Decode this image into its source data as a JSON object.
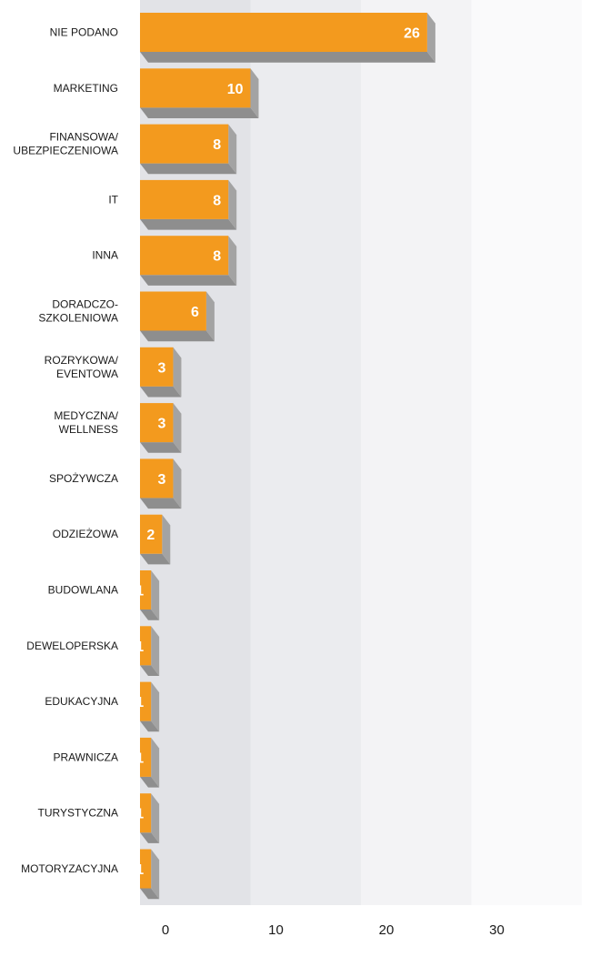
{
  "chart_data": {
    "type": "bar",
    "orientation": "horizontal",
    "categories": [
      [
        "NIE PODANO"
      ],
      [
        "MARKETING"
      ],
      [
        "FINANSOWA/",
        "UBEZPIECZENIOWA"
      ],
      [
        "IT"
      ],
      [
        "INNA"
      ],
      [
        "DORADCZO-",
        "SZKOLENIOWA"
      ],
      [
        "ROZRYKOWA/",
        "EVENTOWA"
      ],
      [
        "MEDYCZNA/",
        "WELLNESS"
      ],
      [
        "SPOŻYWCZA"
      ],
      [
        "ODZIEŻOWA"
      ],
      [
        "BUDOWLANA"
      ],
      [
        "DEWELOPERSKA"
      ],
      [
        "EDUKACYJNA"
      ],
      [
        "PRAWNICZA"
      ],
      [
        "TURYSTYCZNA"
      ],
      [
        "MOTORYZACYJNA"
      ]
    ],
    "values": [
      26,
      10,
      8,
      8,
      8,
      6,
      3,
      3,
      3,
      2,
      1,
      1,
      1,
      1,
      1,
      1
    ],
    "xlim": [
      0,
      40
    ],
    "xticks": [
      0,
      10,
      20,
      30
    ],
    "colors": {
      "bar_front": "#f39a1e",
      "bar_side": "#a3a3a3",
      "bar_bottom": "#8e8e8e",
      "band_1": "#e2e3e7",
      "band_2": "#ebecef",
      "band_3": "#f3f3f5",
      "band_4": "#fafafb"
    }
  }
}
